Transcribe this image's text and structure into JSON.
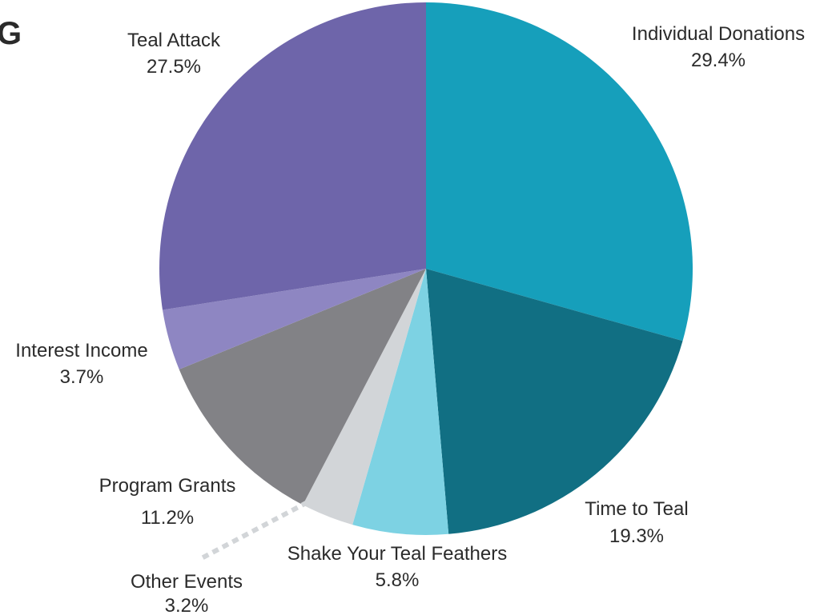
{
  "header": {
    "partial_heading": "G"
  },
  "chart_data": {
    "type": "pie",
    "title": "",
    "slices": [
      {
        "label": "Individual Donations",
        "value": 29.4,
        "value_label": "29.4%",
        "color": "#169fbb"
      },
      {
        "label": "Time to Teal",
        "value": 19.3,
        "value_label": "19.3%",
        "color": "#116f83"
      },
      {
        "label": "Shake Your Teal Feathers",
        "value": 5.8,
        "value_label": "5.8%",
        "color": "#7dd2e3"
      },
      {
        "label": "Other Events",
        "value": 3.2,
        "value_label": "3.2%",
        "color": "#d2d5d8"
      },
      {
        "label": "Program Grants",
        "value": 11.2,
        "value_label": "11.2%",
        "color": "#828286"
      },
      {
        "label": "Interest Income",
        "value": 3.7,
        "value_label": "3.7%",
        "color": "#8e86c2"
      },
      {
        "label": "Teal Attack",
        "value": 27.5,
        "value_label": "27.5%",
        "color": "#6e65aa"
      }
    ]
  }
}
